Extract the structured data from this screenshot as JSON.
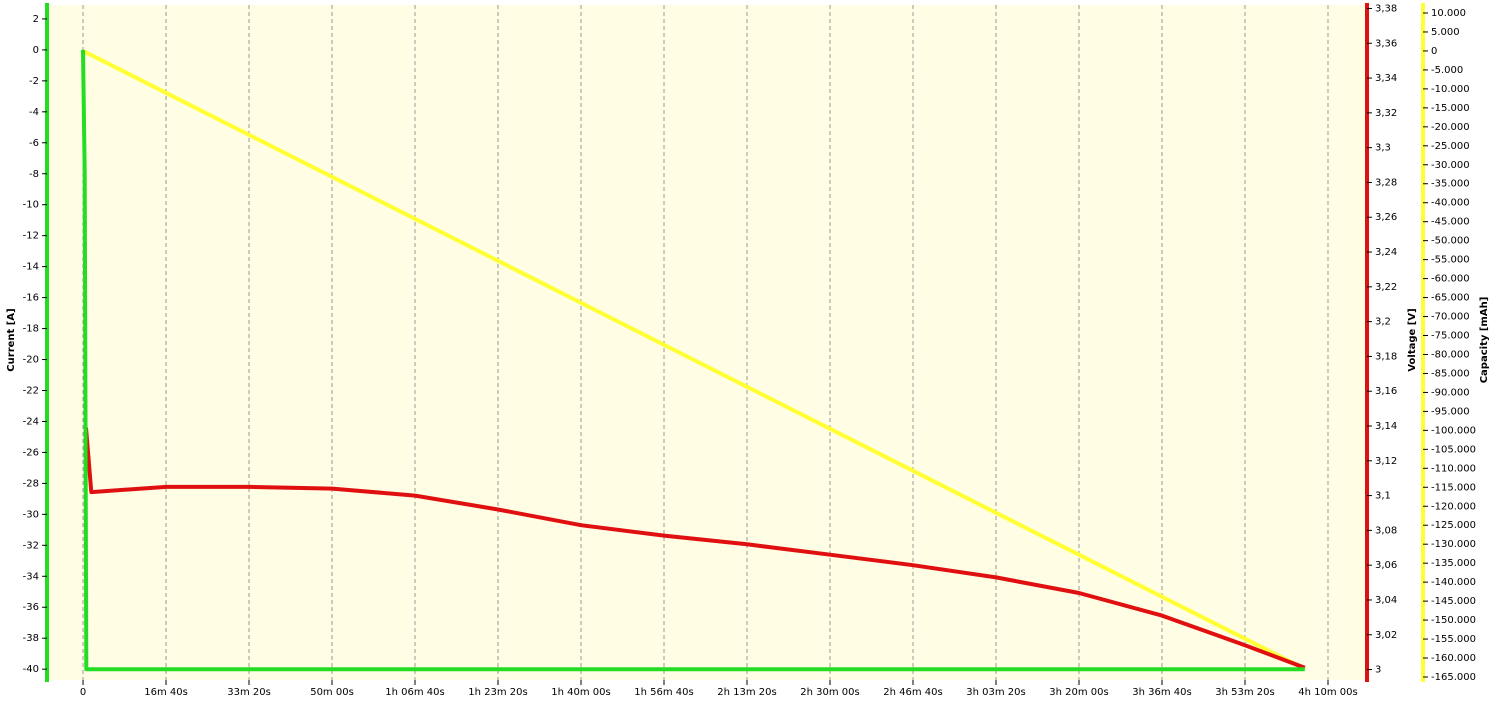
{
  "chart_data": {
    "type": "line",
    "xlim": [
      -434,
      15470
    ],
    "xticks": [
      0,
      {
        "value": 1000,
        "label": "16m 40s"
      },
      {
        "value": 2000,
        "label": "33m 20s"
      },
      {
        "value": 3000,
        "label": "50m 00s"
      },
      {
        "value": 4000,
        "label": "1h 06m 40s"
      },
      {
        "value": 5000,
        "label": "1h 23m 20s"
      },
      {
        "value": 6000,
        "label": "1h 40m 00s"
      },
      {
        "value": 7000,
        "label": "1h 56m 40s"
      },
      {
        "value": 8000,
        "label": "2h 13m 20s"
      },
      {
        "value": 9000,
        "label": "2h 30m 00s"
      },
      {
        "value": 10000,
        "label": "2h 46m 40s"
      },
      {
        "value": 11000,
        "label": "3h 03m 20s"
      },
      {
        "value": 12000,
        "label": "3h 20m 00s"
      },
      {
        "value": 13000,
        "label": "3h 36m 40s"
      },
      {
        "value": 14000,
        "label": "3h 53m 20s"
      },
      {
        "value": 15000,
        "label": "4h 10m 00s"
      }
    ],
    "ylabel": "Current [A]",
    "ylim": [
      -40.7,
      2.9
    ],
    "yticks": [
      2,
      0,
      -2,
      -4,
      -6,
      -8,
      -10,
      -12,
      -14,
      -16,
      -18,
      -20,
      -22,
      -24,
      -26,
      -28,
      -30,
      -32,
      -34,
      -36,
      -38,
      -40
    ],
    "y2label": "Voltage [V]",
    "y2lim": [
      2.994,
      3.382
    ],
    "y2ticks": [
      3,
      {
        "value": 3.02,
        "label": "3,02"
      },
      {
        "value": 3.04,
        "label": "3,04"
      },
      {
        "value": 3.06,
        "label": "3,06"
      },
      {
        "value": 3.08,
        "label": "3,08"
      },
      {
        "value": 3.1,
        "label": "3,1"
      },
      {
        "value": 3.12,
        "label": "3,12"
      },
      {
        "value": 3.14,
        "label": "3,14"
      },
      {
        "value": 3.16,
        "label": "3,16"
      },
      {
        "value": 3.18,
        "label": "3,18"
      },
      {
        "value": 3.2,
        "label": "3,2"
      },
      {
        "value": 3.22,
        "label": "3,22"
      },
      {
        "value": 3.24,
        "label": "3,24"
      },
      {
        "value": 3.26,
        "label": "3,26"
      },
      {
        "value": 3.28,
        "label": "3,28"
      },
      {
        "value": 3.3,
        "label": "3,3"
      },
      {
        "value": 3.32,
        "label": "3,32"
      },
      {
        "value": 3.34,
        "label": "3,34"
      },
      {
        "value": 3.36,
        "label": "3,36"
      },
      {
        "value": 3.38,
        "label": "3,38"
      }
    ],
    "y3label": "Capacity [mAh]",
    "y3lim": [
      -165791,
      12108
    ],
    "y3ticks": [
      {
        "value": 10000,
        "label": "10.000"
      },
      {
        "value": 5000,
        "label": "5.000"
      },
      0,
      {
        "value": -5000,
        "label": "-5.000"
      },
      {
        "value": -10000,
        "label": "-10.000"
      },
      {
        "value": -15000,
        "label": "-15.000"
      },
      {
        "value": -20000,
        "label": "-20.000"
      },
      {
        "value": -25000,
        "label": "-25.000"
      },
      {
        "value": -30000,
        "label": "-30.000"
      },
      {
        "value": -35000,
        "label": "-35.000"
      },
      {
        "value": -40000,
        "label": "-40.000"
      },
      {
        "value": -45000,
        "label": "-45.000"
      },
      {
        "value": -50000,
        "label": "-50.000"
      },
      {
        "value": -55000,
        "label": "-55.000"
      },
      {
        "value": -60000,
        "label": "-60.000"
      },
      {
        "value": -65000,
        "label": "-65.000"
      },
      {
        "value": -70000,
        "label": "-70.000"
      },
      {
        "value": -75000,
        "label": "-75.000"
      },
      {
        "value": -80000,
        "label": "-80.000"
      },
      {
        "value": -85000,
        "label": "-85.000"
      },
      {
        "value": -90000,
        "label": "-90.000"
      },
      {
        "value": -95000,
        "label": "-95.000"
      },
      {
        "value": -100000,
        "label": "-100.000"
      },
      {
        "value": -105000,
        "label": "-105.000"
      },
      {
        "value": -110000,
        "label": "-110.000"
      },
      {
        "value": -115000,
        "label": "-115.000"
      },
      {
        "value": -120000,
        "label": "-120.000"
      },
      {
        "value": -125000,
        "label": "-125.000"
      },
      {
        "value": -130000,
        "label": "-130.000"
      },
      {
        "value": -135000,
        "label": "-135.000"
      },
      {
        "value": -140000,
        "label": "-140.000"
      },
      {
        "value": -145000,
        "label": "-145.000"
      },
      {
        "value": -150000,
        "label": "-150.000"
      },
      {
        "value": -155000,
        "label": "-155.000"
      },
      {
        "value": -160000,
        "label": "-160.000"
      },
      {
        "value": -165000,
        "label": "-165.000"
      }
    ],
    "grid": true,
    "series": [
      {
        "color": "#ffff33",
        "axis": "y3",
        "x": [
          0,
          14720
        ],
        "values": [
          0,
          -162900
        ]
      },
      {
        "color": "#e01010",
        "axis": "y2",
        "x": [
          36,
          100,
          1000,
          2000,
          3000,
          4000,
          5000,
          6000,
          7000,
          8000,
          9000,
          10000,
          11000,
          12000,
          13000,
          14000,
          14720
        ],
        "values": [
          3.139,
          3.102,
          3.105,
          3.105,
          3.104,
          3.1,
          3.092,
          3.083,
          3.077,
          3.072,
          3.066,
          3.06,
          3.053,
          3.044,
          3.031,
          3.014,
          3.001
        ]
      },
      {
        "color": "#22dd22",
        "axis": "y",
        "x": [
          0,
          20,
          40,
          14720
        ],
        "values": [
          0,
          -8,
          -40,
          -40
        ]
      }
    ]
  }
}
